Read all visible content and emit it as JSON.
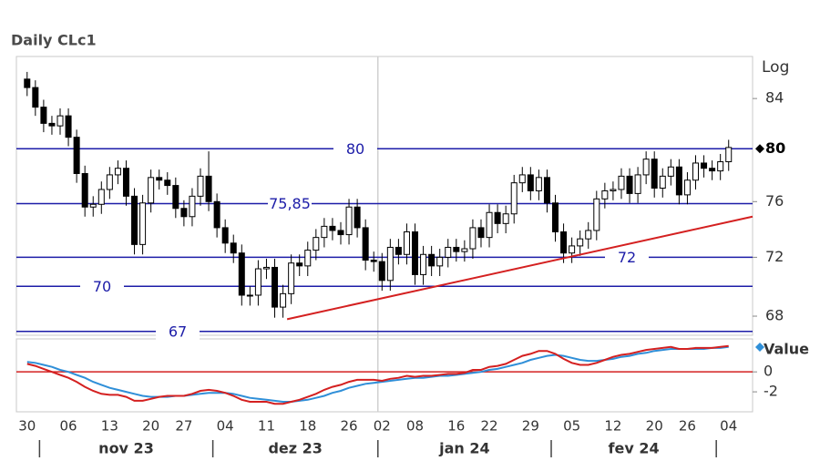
{
  "title": "Daily CLc1",
  "chart_data": [
    {
      "type": "candlestick",
      "categories": [
        "30",
        null,
        null,
        null,
        null,
        "06",
        null,
        null,
        null,
        null,
        "13",
        null,
        null,
        null,
        null,
        "20",
        null,
        null,
        null,
        "27",
        null,
        null,
        null,
        null,
        "04",
        null,
        null,
        null,
        null,
        "11",
        null,
        null,
        null,
        null,
        "18",
        null,
        null,
        null,
        null,
        "26",
        null,
        null,
        null,
        "02",
        null,
        null,
        null,
        "08",
        null,
        null,
        null,
        null,
        "16",
        null,
        null,
        null,
        "22",
        null,
        null,
        null,
        null,
        "29",
        null,
        null,
        null,
        null,
        "05",
        null,
        null,
        null,
        null,
        "12",
        null,
        null,
        null,
        null,
        "20",
        null,
        null,
        null,
        "26",
        null,
        null,
        null,
        null,
        "04"
      ],
      "months": [
        "nov 23",
        "dez 23",
        "jan 24",
        "fev 24"
      ],
      "open": [
        85.6,
        84.9,
        83.3,
        82.0,
        81.8,
        82.6,
        80.9,
        78.1,
        75.6,
        75.8,
        76.9,
        78.0,
        78.5,
        76.4,
        72.9,
        75.9,
        77.8,
        77.6,
        77.2,
        75.5,
        74.9,
        76.4,
        77.9,
        76.0,
        74.1,
        73.0,
        72.3,
        69.4,
        69.4,
        71.2,
        71.3,
        68.6,
        69.5,
        71.6,
        71.4,
        72.5,
        73.4,
        74.2,
        73.9,
        73.6,
        75.6,
        74.1,
        71.8,
        71.7,
        70.4,
        72.7,
        72.2,
        73.8,
        70.8,
        72.2,
        71.4,
        72.0,
        72.7,
        72.4,
        72.6,
        74.1,
        73.4,
        75.2,
        74.4,
        75.1,
        77.4,
        78.0,
        76.8,
        77.8,
        75.9,
        73.8,
        72.3,
        72.8,
        73.3,
        73.9,
        76.2,
        76.8,
        76.9,
        77.9,
        76.6,
        78.0,
        79.2,
        77.0,
        77.9,
        78.6,
        76.5,
        77.6,
        78.9,
        78.5,
        78.3,
        79.0
      ],
      "high": [
        86.2,
        85.5,
        83.9,
        82.6,
        83.2,
        83.2,
        81.5,
        78.7,
        76.4,
        77.5,
        78.6,
        79.1,
        79.1,
        77.0,
        76.5,
        78.4,
        78.4,
        78.2,
        77.8,
        76.1,
        77.0,
        78.5,
        79.8,
        76.6,
        74.7,
        73.6,
        72.9,
        70.0,
        71.8,
        71.9,
        71.9,
        70.1,
        72.2,
        72.2,
        73.1,
        74.0,
        74.8,
        74.8,
        74.5,
        76.2,
        76.2,
        74.7,
        72.4,
        72.3,
        73.3,
        73.3,
        74.4,
        74.4,
        72.8,
        72.8,
        72.6,
        73.3,
        73.3,
        73.2,
        74.7,
        74.7,
        75.8,
        75.8,
        75.7,
        78.0,
        78.6,
        78.6,
        78.4,
        78.4,
        76.5,
        74.4,
        73.4,
        73.9,
        74.5,
        76.8,
        77.4,
        77.5,
        78.5,
        78.5,
        78.6,
        79.8,
        79.8,
        78.5,
        79.2,
        79.2,
        78.2,
        79.5,
        79.5,
        79.1,
        79.6,
        80.7
      ],
      "low": [
        84.2,
        82.6,
        81.3,
        81.1,
        81.1,
        80.2,
        77.4,
        74.9,
        74.9,
        75.1,
        76.2,
        77.3,
        75.7,
        72.2,
        72.2,
        75.2,
        76.9,
        76.5,
        74.8,
        74.2,
        74.2,
        75.7,
        75.3,
        73.4,
        72.3,
        71.6,
        68.7,
        68.7,
        68.7,
        70.5,
        67.9,
        67.9,
        68.8,
        70.7,
        70.7,
        71.8,
        72.7,
        73.2,
        72.9,
        72.9,
        73.4,
        71.1,
        71.0,
        69.7,
        69.7,
        71.5,
        71.5,
        70.1,
        70.1,
        70.7,
        70.7,
        71.3,
        71.7,
        71.7,
        71.9,
        72.7,
        72.7,
        73.7,
        73.7,
        74.4,
        76.7,
        76.1,
        76.1,
        75.2,
        73.1,
        71.6,
        71.6,
        72.1,
        72.6,
        73.2,
        75.5,
        76.1,
        76.2,
        75.9,
        75.9,
        77.3,
        76.3,
        76.3,
        77.2,
        75.8,
        75.8,
        76.9,
        77.8,
        77.6,
        77.6,
        78.3
      ],
      "close": [
        84.9,
        83.3,
        82.0,
        81.8,
        82.6,
        80.9,
        78.1,
        75.6,
        75.8,
        76.9,
        78.0,
        78.5,
        76.4,
        72.9,
        75.9,
        77.8,
        77.6,
        77.2,
        75.5,
        74.9,
        76.4,
        77.9,
        76.0,
        74.1,
        73.0,
        72.3,
        69.4,
        69.4,
        71.2,
        71.3,
        68.6,
        69.5,
        71.6,
        71.4,
        72.5,
        73.4,
        74.2,
        73.9,
        73.6,
        75.6,
        74.1,
        71.8,
        71.7,
        70.4,
        72.7,
        72.2,
        73.8,
        70.8,
        72.2,
        71.4,
        72.0,
        72.7,
        72.4,
        72.6,
        74.1,
        73.4,
        75.2,
        74.4,
        75.1,
        77.4,
        78.0,
        76.8,
        77.8,
        75.9,
        73.8,
        72.3,
        72.8,
        73.3,
        73.9,
        76.2,
        76.8,
        76.9,
        77.9,
        76.6,
        78.0,
        79.2,
        77.0,
        77.9,
        78.6,
        76.5,
        77.6,
        78.9,
        78.5,
        78.3,
        79.0,
        80.1
      ],
      "xlim": [
        -1.3,
        87.9
      ],
      "ylim": [
        66.75,
        87.5
      ],
      "log": true,
      "scale_label": "Log",
      "yticks": [
        68,
        72,
        76,
        84
      ],
      "price_marker": 80,
      "levels": [
        80,
        {
          "value": 75.85,
          "label": "75,85"
        },
        72,
        70,
        67
      ],
      "level_color": "#1c1ca8",
      "trendline": {
        "x": [
          31.5,
          87.9
        ],
        "y": [
          67.8,
          74.9
        ],
        "color": "#d42020"
      }
    },
    {
      "type": "line",
      "legend": "Value",
      "legend_color": "#2f8fd8",
      "series": [
        {
          "color": "#d42020",
          "values": [
            0.8,
            0.6,
            0.3,
            0,
            -0.3,
            -0.6,
            -1.0,
            -1.5,
            -1.9,
            -2.2,
            -2.3,
            -2.3,
            -2.5,
            -2.9,
            -2.9,
            -2.7,
            -2.5,
            -2.4,
            -2.4,
            -2.4,
            -2.2,
            -1.9,
            -1.8,
            -1.9,
            -2.1,
            -2.4,
            -2.8,
            -3.0,
            -3.0,
            -3.0,
            -3.2,
            -3.2,
            -3.0,
            -2.8,
            -2.5,
            -2.2,
            -1.8,
            -1.5,
            -1.3,
            -1.0,
            -0.8,
            -0.8,
            -0.8,
            -0.9,
            -0.7,
            -0.6,
            -0.4,
            -0.5,
            -0.4,
            -0.4,
            -0.3,
            -0.2,
            -0.2,
            -0.1,
            0.2,
            0.2,
            0.5,
            0.6,
            0.8,
            1.2,
            1.6,
            1.8,
            2.1,
            2.1,
            1.8,
            1.3,
            0.9,
            0.7,
            0.7,
            0.9,
            1.2,
            1.5,
            1.7,
            1.8,
            2.0,
            2.2,
            2.3,
            2.4,
            2.5,
            2.3,
            2.3,
            2.4,
            2.4,
            2.4,
            2.5,
            2.6
          ]
        },
        {
          "color": "#2f8fd8",
          "values": [
            1.0,
            0.9,
            0.7,
            0.5,
            0.2,
            0.0,
            -0.3,
            -0.6,
            -1.0,
            -1.3,
            -1.6,
            -1.8,
            -2.0,
            -2.2,
            -2.4,
            -2.5,
            -2.5,
            -2.5,
            -2.4,
            -2.4,
            -2.3,
            -2.2,
            -2.1,
            -2.1,
            -2.1,
            -2.2,
            -2.4,
            -2.6,
            -2.7,
            -2.8,
            -2.9,
            -3.0,
            -3.0,
            -2.9,
            -2.8,
            -2.6,
            -2.4,
            -2.1,
            -1.9,
            -1.6,
            -1.4,
            -1.2,
            -1.1,
            -1.0,
            -0.9,
            -0.8,
            -0.7,
            -0.6,
            -0.6,
            -0.5,
            -0.4,
            -0.4,
            -0.3,
            -0.2,
            -0.1,
            0.0,
            0.2,
            0.3,
            0.5,
            0.7,
            0.9,
            1.2,
            1.4,
            1.6,
            1.7,
            1.6,
            1.4,
            1.2,
            1.1,
            1.1,
            1.2,
            1.3,
            1.5,
            1.6,
            1.8,
            1.9,
            2.1,
            2.2,
            2.3,
            2.3,
            2.3,
            2.3,
            2.3,
            2.4,
            2.4,
            2.5
          ]
        }
      ],
      "hline": 0,
      "hline_color": "#d42020",
      "ylim": [
        -4,
        3.3
      ],
      "yticks": [
        0,
        -2
      ]
    }
  ]
}
